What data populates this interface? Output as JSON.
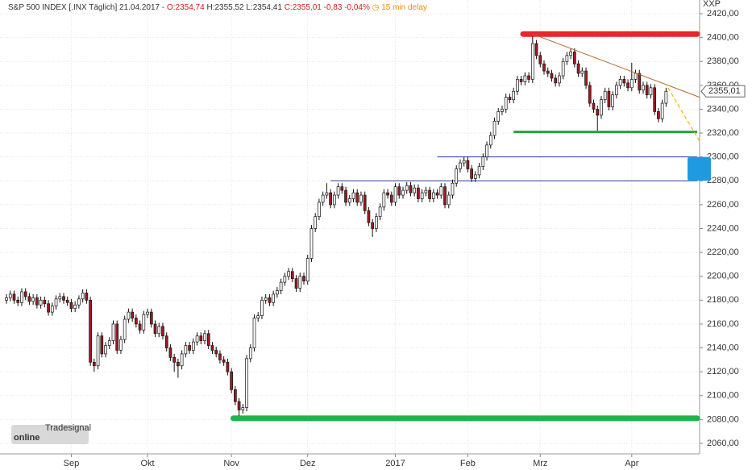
{
  "chart_data": {
    "type": "candlestick",
    "header": {
      "name": "S&P 500 INDEX [.INX Täglich] 21.04.2017 -",
      "open": "O:2354,74",
      "high": "H:2355,52",
      "low": "L:2354,41",
      "close": "C:2355,01",
      "change": "-0,83",
      "change_pct": "-0,04%",
      "delay": "15 min delay"
    },
    "axis_name": "XXP",
    "watermark": {
      "brand": "Tradesignal",
      "product": "online"
    },
    "open": [
      2180,
      2182,
      2185,
      2180,
      2178,
      2187,
      2183,
      2179,
      2182,
      2176,
      2180,
      2177,
      2170,
      2175,
      2181,
      2183,
      2180,
      2178,
      2173,
      2176,
      2181,
      2186,
      2180,
      2128,
      2125,
      2150,
      2135,
      2142,
      2146,
      2160,
      2138,
      2147,
      2164,
      2170,
      2165,
      2160,
      2155,
      2168,
      2170,
      2160,
      2152,
      2158,
      2150,
      2140,
      2132,
      2128,
      2125,
      2135,
      2142,
      2138,
      2145,
      2150,
      2146,
      2152,
      2142,
      2138,
      2135,
      2130,
      2128,
      2120,
      2105,
      2095,
      2088,
      2090,
      2131,
      2140,
      2165,
      2167,
      2180,
      2182,
      2178,
      2185,
      2188,
      2195,
      2200,
      2204,
      2198,
      2190,
      2200,
      2196,
      2215,
      2240,
      2250,
      2262,
      2268,
      2270,
      2260,
      2268,
      2275,
      2272,
      2262,
      2265,
      2270,
      2262,
      2268,
      2255,
      2245,
      2240,
      2250,
      2258,
      2270,
      2268,
      2262,
      2275,
      2268,
      2272,
      2276,
      2270,
      2274,
      2265,
      2270,
      2272,
      2265,
      2270,
      2268,
      2275,
      2260,
      2268,
      2278,
      2290,
      2295,
      2297,
      2290,
      2282,
      2285,
      2292,
      2300,
      2310,
      2318,
      2330,
      2338,
      2340,
      2350,
      2348,
      2355,
      2365,
      2363,
      2368,
      2365,
      2395,
      2385,
      2378,
      2372,
      2370,
      2366,
      2362,
      2368,
      2380,
      2385,
      2388,
      2378,
      2370,
      2372,
      2360,
      2345,
      2340,
      2335,
      2348,
      2355,
      2342,
      2352,
      2360,
      2365,
      2362,
      2358,
      2365,
      2370,
      2356,
      2360,
      2352,
      2358,
      2338,
      2332,
      2345
    ],
    "high": [
      2185,
      2188,
      2188,
      2183,
      2190,
      2190,
      2186,
      2185,
      2185,
      2183,
      2183,
      2180,
      2178,
      2184,
      2186,
      2186,
      2183,
      2181,
      2179,
      2184,
      2189,
      2189,
      2183,
      2131,
      2153,
      2153,
      2145,
      2149,
      2163,
      2163,
      2150,
      2167,
      2173,
      2173,
      2168,
      2163,
      2171,
      2173,
      2173,
      2163,
      2161,
      2161,
      2153,
      2143,
      2135,
      2131,
      2138,
      2145,
      2145,
      2148,
      2153,
      2153,
      2155,
      2155,
      2145,
      2141,
      2138,
      2133,
      2131,
      2123,
      2108,
      2098,
      2093,
      2134,
      2143,
      2168,
      2170,
      2183,
      2185,
      2185,
      2188,
      2191,
      2198,
      2203,
      2207,
      2207,
      2201,
      2203,
      2203,
      2218,
      2243,
      2253,
      2265,
      2271,
      2278,
      2273,
      2271,
      2278,
      2278,
      2275,
      2268,
      2273,
      2273,
      2271,
      2271,
      2258,
      2248,
      2253,
      2261,
      2273,
      2273,
      2271,
      2278,
      2278,
      2275,
      2279,
      2279,
      2277,
      2277,
      2273,
      2275,
      2275,
      2273,
      2273,
      2278,
      2278,
      2271,
      2281,
      2293,
      2298,
      2300,
      2300,
      2293,
      2288,
      2295,
      2303,
      2313,
      2321,
      2333,
      2341,
      2343,
      2353,
      2353,
      2358,
      2368,
      2368,
      2371,
      2371,
      2401,
      2398,
      2388,
      2381,
      2375,
      2373,
      2369,
      2371,
      2383,
      2388,
      2391,
      2391,
      2381,
      2375,
      2375,
      2363,
      2348,
      2343,
      2351,
      2358,
      2358,
      2355,
      2363,
      2368,
      2368,
      2365,
      2379,
      2373,
      2373,
      2363,
      2363,
      2361,
      2361,
      2341,
      2348,
      2358
    ],
    "low": [
      2177,
      2179,
      2177,
      2175,
      2175,
      2180,
      2176,
      2176,
      2173,
      2173,
      2174,
      2167,
      2167,
      2172,
      2178,
      2177,
      2175,
      2170,
      2170,
      2173,
      2178,
      2177,
      2125,
      2120,
      2122,
      2132,
      2132,
      2139,
      2143,
      2135,
      2135,
      2144,
      2161,
      2162,
      2157,
      2152,
      2152,
      2165,
      2157,
      2149,
      2149,
      2147,
      2137,
      2129,
      2120,
      2115,
      2122,
      2132,
      2135,
      2135,
      2142,
      2143,
      2143,
      2139,
      2135,
      2132,
      2127,
      2125,
      2117,
      2102,
      2092,
      2083,
      2085,
      2087,
      2128,
      2137,
      2162,
      2164,
      2177,
      2175,
      2175,
      2182,
      2185,
      2192,
      2197,
      2195,
      2187,
      2187,
      2193,
      2193,
      2212,
      2237,
      2247,
      2259,
      2265,
      2257,
      2257,
      2265,
      2269,
      2259,
      2259,
      2262,
      2259,
      2259,
      2252,
      2242,
      2233,
      2237,
      2247,
      2255,
      2265,
      2259,
      2259,
      2265,
      2265,
      2269,
      2267,
      2267,
      2262,
      2262,
      2267,
      2262,
      2262,
      2265,
      2265,
      2257,
      2257,
      2265,
      2275,
      2287,
      2292,
      2287,
      2279,
      2279,
      2282,
      2289,
      2297,
      2307,
      2315,
      2327,
      2335,
      2337,
      2345,
      2345,
      2352,
      2360,
      2360,
      2362,
      2362,
      2382,
      2375,
      2369,
      2367,
      2363,
      2359,
      2359,
      2365,
      2377,
      2382,
      2375,
      2367,
      2367,
      2357,
      2342,
      2337,
      2322,
      2332,
      2345,
      2339,
      2339,
      2349,
      2357,
      2359,
      2355,
      2355,
      2362,
      2353,
      2353,
      2349,
      2349,
      2335,
      2329,
      2329,
      2342
    ],
    "close": [
      2182,
      2185,
      2180,
      2178,
      2187,
      2183,
      2179,
      2182,
      2176,
      2180,
      2177,
      2170,
      2175,
      2181,
      2183,
      2180,
      2178,
      2173,
      2176,
      2181,
      2186,
      2180,
      2128,
      2125,
      2150,
      2135,
      2142,
      2146,
      2160,
      2138,
      2147,
      2164,
      2170,
      2165,
      2160,
      2155,
      2168,
      2170,
      2160,
      2152,
      2158,
      2150,
      2140,
      2132,
      2128,
      2125,
      2135,
      2142,
      2138,
      2145,
      2150,
      2146,
      2152,
      2142,
      2138,
      2135,
      2130,
      2128,
      2120,
      2105,
      2095,
      2088,
      2090,
      2131,
      2140,
      2165,
      2167,
      2180,
      2182,
      2178,
      2185,
      2188,
      2195,
      2200,
      2204,
      2198,
      2190,
      2200,
      2196,
      2215,
      2240,
      2250,
      2262,
      2268,
      2270,
      2260,
      2268,
      2275,
      2272,
      2262,
      2265,
      2270,
      2262,
      2268,
      2255,
      2245,
      2240,
      2250,
      2258,
      2270,
      2268,
      2262,
      2275,
      2268,
      2272,
      2276,
      2270,
      2274,
      2265,
      2270,
      2272,
      2265,
      2270,
      2268,
      2275,
      2260,
      2268,
      2278,
      2290,
      2295,
      2297,
      2290,
      2282,
      2285,
      2292,
      2300,
      2310,
      2318,
      2330,
      2338,
      2340,
      2350,
      2348,
      2355,
      2365,
      2363,
      2368,
      2365,
      2395,
      2385,
      2378,
      2372,
      2370,
      2366,
      2362,
      2368,
      2380,
      2385,
      2388,
      2378,
      2370,
      2372,
      2360,
      2345,
      2340,
      2335,
      2348,
      2355,
      2342,
      2352,
      2360,
      2365,
      2362,
      2358,
      2365,
      2370,
      2356,
      2360,
      2352,
      2358,
      2338,
      2332,
      2345,
      2355
    ],
    "up_color": "#ffffff",
    "down_color": "#a01a1f",
    "xlim": [
      -1.7,
      181.8
    ],
    "xticks": [
      {
        "value": 17,
        "label": "Sep"
      },
      {
        "value": 37,
        "label": "Okt"
      },
      {
        "value": 59,
        "label": "Nov"
      },
      {
        "value": 79,
        "label": "Dez"
      },
      {
        "value": 102,
        "label": "2017"
      },
      {
        "value": 121,
        "label": "Feb"
      },
      {
        "value": 140,
        "label": "Mrz"
      },
      {
        "value": 164,
        "label": "Apr"
      }
    ],
    "ylim": [
      2051.2,
      2431.5
    ],
    "yticks": [
      {
        "value": 2060,
        "label": "2060,00"
      },
      {
        "value": 2080,
        "label": "2080,00"
      },
      {
        "value": 2100,
        "label": "2100,00"
      },
      {
        "value": 2120,
        "label": "2120,00"
      },
      {
        "value": 2140,
        "label": "2140,00"
      },
      {
        "value": 2160,
        "label": "2160,00"
      },
      {
        "value": 2180,
        "label": "2180,00"
      },
      {
        "value": 2200,
        "label": "2200,00"
      },
      {
        "value": 2220,
        "label": "2220,00"
      },
      {
        "value": 2240,
        "label": "2240,00"
      },
      {
        "value": 2260,
        "label": "2260,00"
      },
      {
        "value": 2280,
        "label": "2280,00"
      },
      {
        "value": 2300,
        "label": "2300,00"
      },
      {
        "value": 2320,
        "label": "2320,00"
      },
      {
        "value": 2340,
        "label": "2340,00"
      },
      {
        "value": 2360,
        "label": "2360,00"
      },
      {
        "value": 2380,
        "label": "2380,00"
      },
      {
        "value": 2400,
        "label": "2400,00"
      },
      {
        "value": 2420,
        "label": "2420,00"
      }
    ],
    "grid": true,
    "levels": [
      {
        "value": 2403,
        "x_start": 135.5,
        "color": "#e8262d",
        "style": "thick"
      },
      {
        "value": 2321,
        "x_start": 133,
        "color": "#22a63a",
        "style": "medium"
      },
      {
        "value": 2300,
        "x_start": 113,
        "color": "#2b3a9c",
        "style": "thin"
      },
      {
        "value": 2280,
        "x_start": 85,
        "color": "#2b3a9c",
        "style": "thin"
      },
      {
        "value": 2081,
        "x_start": 59.5,
        "color": "#22b14c",
        "style": "thick"
      }
    ],
    "trendline": {
      "x": [
        138,
        181.8
      ],
      "y": [
        2403,
        2350
      ],
      "color": "#b5652a"
    },
    "projection": {
      "x": [
        173.5,
        182
      ],
      "y": [
        2358,
        2312
      ],
      "color": "#f2b705"
    },
    "target_zone": {
      "y": [
        2280,
        2300
      ],
      "color": "#1e9be0"
    },
    "last_price": {
      "value": 2355.01,
      "label": "2355,01"
    }
  }
}
